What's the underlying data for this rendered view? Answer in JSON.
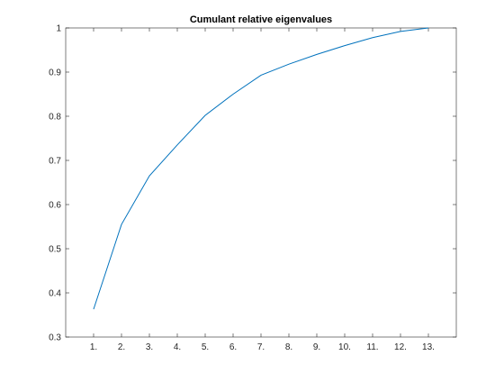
{
  "chart_data": {
    "type": "line",
    "title": "Cumulant relative eigenvalues",
    "xlabel": "",
    "ylabel": "",
    "categories": [
      "1.",
      "2.",
      "3.",
      "4.",
      "5.",
      "6.",
      "7.",
      "8.",
      "9.",
      "10.",
      "11.",
      "12.",
      "13."
    ],
    "x": [
      1,
      2,
      3,
      4,
      5,
      6,
      7,
      8,
      9,
      10,
      11,
      12,
      13
    ],
    "series": [
      {
        "values": [
          0.363,
          0.555,
          0.665,
          0.735,
          0.802,
          0.85,
          0.893,
          0.918,
          0.94,
          0.96,
          0.978,
          0.992,
          1.0
        ],
        "color": "#0072bd"
      }
    ],
    "xlim": [
      0,
      14
    ],
    "ylim": [
      0.3,
      1.0
    ],
    "yticks": [
      0.3,
      0.4,
      0.5,
      0.6,
      0.7,
      0.8,
      0.9,
      1
    ],
    "ytick_labels": [
      "0.3",
      "0.4",
      "0.5",
      "0.6",
      "0.7",
      "0.8",
      "0.9",
      "1"
    ],
    "grid": false,
    "legend": "none"
  }
}
